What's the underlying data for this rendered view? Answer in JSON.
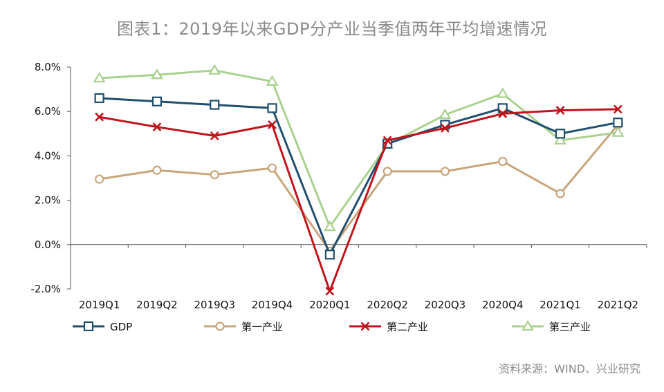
{
  "title": "图表1：2019年以来GDP分产业当季值两年平均增速情况",
  "source": "资料来源：WIND、兴业研究",
  "chart_data": {
    "type": "line",
    "categories": [
      "2019Q1",
      "2019Q2",
      "2019Q3",
      "2019Q4",
      "2020Q1",
      "2020Q2",
      "2020Q3",
      "2020Q4",
      "2021Q1",
      "2021Q2"
    ],
    "ylim": [
      -2,
      8
    ],
    "yticks": [
      -2,
      0,
      2,
      4,
      6,
      8
    ],
    "ytick_labels": [
      "-2.0%",
      "0.0%",
      "2.0%",
      "4.0%",
      "6.0%",
      "8.0%"
    ],
    "grid": false,
    "legend_position": "bottom",
    "series": [
      {
        "name": "GDP",
        "color": "#1f4e6e",
        "marker": "square",
        "values": [
          6.6,
          6.45,
          6.3,
          6.15,
          -0.45,
          4.55,
          5.4,
          6.15,
          5.0,
          5.5
        ]
      },
      {
        "name": "第一产业",
        "color": "#c8a47a",
        "marker": "circle",
        "values": [
          2.95,
          3.35,
          3.15,
          3.45,
          -0.3,
          3.3,
          3.3,
          3.75,
          2.3,
          5.4
        ]
      },
      {
        "name": "第二产业",
        "color": "#c0141c",
        "marker": "x",
        "values": [
          5.75,
          5.3,
          4.9,
          5.4,
          -2.1,
          4.7,
          5.25,
          5.9,
          6.05,
          6.1
        ]
      },
      {
        "name": "第三产业",
        "color": "#a9d18e",
        "marker": "triangle",
        "values": [
          7.5,
          7.65,
          7.85,
          7.35,
          0.8,
          4.5,
          5.85,
          6.8,
          4.7,
          5.05
        ]
      }
    ]
  }
}
